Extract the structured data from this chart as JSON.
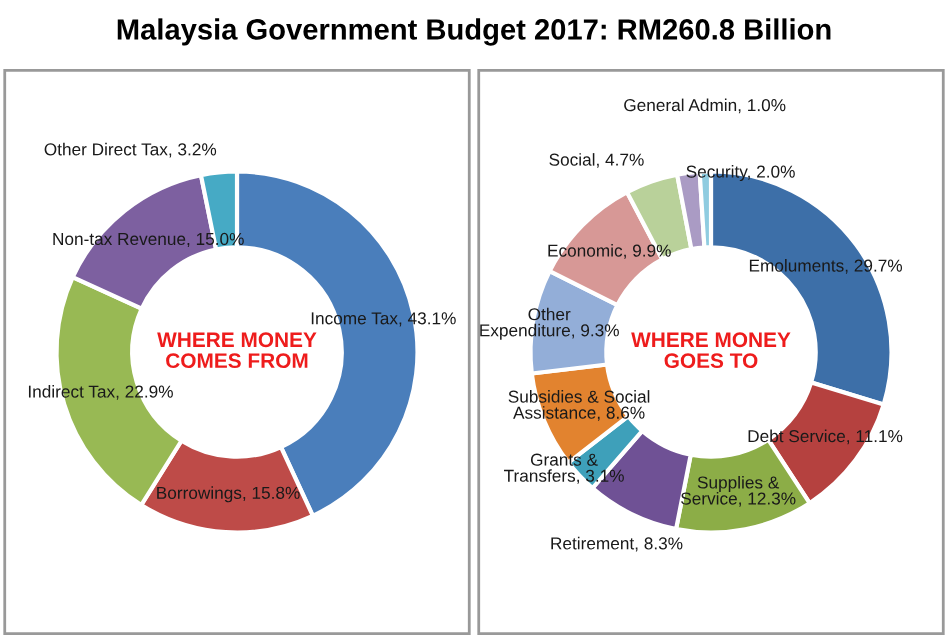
{
  "chart_data": [
    {
      "type": "donut",
      "title": "Malaysia Government Budget 2017: RM260.8 Billion",
      "annotations": [
        "WHERE MONEY\nCOMES FROM"
      ],
      "categories": [
        "Income Tax",
        "Borrowings",
        "Indirect Tax",
        "Non-tax Revenue",
        "Other Direct Tax"
      ],
      "values": [
        43.1,
        15.8,
        22.9,
        15.0,
        3.2
      ],
      "value_labels": [
        "43.1%",
        "15.8%",
        "22.9%",
        "15.0%",
        "3.2%"
      ],
      "colors": [
        "#4a7ebb",
        "#be4b48",
        "#98b954",
        "#7d60a0",
        "#46aac5"
      ]
    },
    {
      "type": "donut",
      "annotations": [
        "WHERE MONEY\nGOES TO"
      ],
      "categories": [
        "Emoluments",
        "Debt Service",
        "Supplies &\nService",
        "Retirement",
        "Grants &\nTransfers",
        "Subsidies & Social\nAssistance",
        "Other\nExpenditure",
        "Economic",
        "Social",
        "Security",
        "General Admin"
      ],
      "values": [
        29.7,
        11.1,
        12.3,
        8.3,
        3.1,
        8.6,
        9.3,
        9.9,
        4.7,
        2.0,
        1.0
      ],
      "value_labels": [
        "29.7%",
        "11.1%",
        "12.3%",
        "8.3%",
        "3.1%",
        "8.6%",
        "9.3%",
        "9.9%",
        "4.7%",
        "2.0%",
        "1.0%"
      ],
      "colors": [
        "#3d6fa8",
        "#b5413f",
        "#8cad47",
        "#6f5195",
        "#3ea0ba",
        "#e2832f",
        "#93aed8",
        "#d79896",
        "#b9d19a",
        "#aa9bc4",
        "#8fcce0"
      ]
    }
  ]
}
